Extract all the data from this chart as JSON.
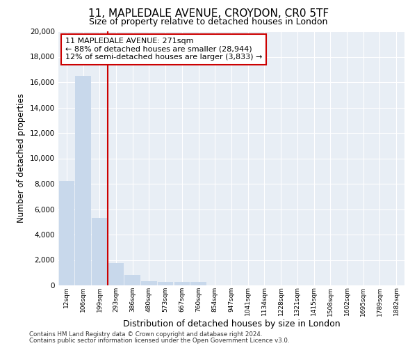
{
  "title_line1": "11, MAPLEDALE AVENUE, CROYDON, CR0 5TF",
  "title_line2": "Size of property relative to detached houses in London",
  "xlabel": "Distribution of detached houses by size in London",
  "ylabel": "Number of detached properties",
  "annotation_line1": "11 MAPLEDALE AVENUE: 271sqm",
  "annotation_line2": "← 88% of detached houses are smaller (28,944)",
  "annotation_line3": "12% of semi-detached houses are larger (3,833) →",
  "footer_line1": "Contains HM Land Registry data © Crown copyright and database right 2024.",
  "footer_line2": "Contains public sector information licensed under the Open Government Licence v3.0.",
  "bar_color": "#c8d8eb",
  "property_line_color": "#cc0000",
  "annotation_box_edge_color": "#cc0000",
  "background_color": "#e8eef5",
  "grid_color": "#ffffff",
  "ylim": [
    0,
    20000
  ],
  "yticks": [
    0,
    2000,
    4000,
    6000,
    8000,
    10000,
    12000,
    14000,
    16000,
    18000,
    20000
  ],
  "categories": [
    "12sqm",
    "106sqm",
    "199sqm",
    "293sqm",
    "386sqm",
    "480sqm",
    "573sqm",
    "667sqm",
    "760sqm",
    "854sqm",
    "947sqm",
    "1041sqm",
    "1134sqm",
    "1228sqm",
    "1321sqm",
    "1415sqm",
    "1508sqm",
    "1602sqm",
    "1695sqm",
    "1789sqm",
    "1882sqm"
  ],
  "values": [
    8200,
    16500,
    5300,
    1750,
    800,
    350,
    300,
    300,
    300,
    0,
    0,
    0,
    0,
    0,
    0,
    0,
    0,
    0,
    0,
    0,
    0
  ],
  "property_line_x": 2.5
}
